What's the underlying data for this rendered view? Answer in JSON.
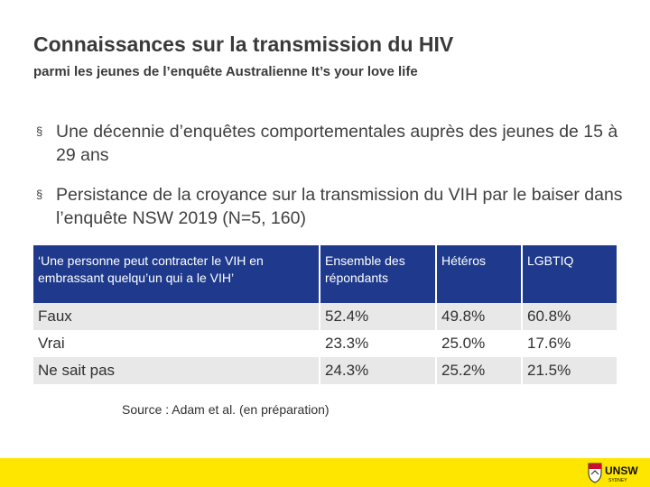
{
  "header": {
    "title": "Connaissances sur la transmission du HIV",
    "subtitle": "parmi les jeunes de l’enquête Australienne It’s your love life"
  },
  "bullets": [
    {
      "marker": "§",
      "text": "Une décennie d’enquêtes comportementales auprès des jeunes de 15 à 29 ans"
    },
    {
      "marker": "§",
      "text": "Persistance de la croyance sur la transmission du VIH par le baiser dans l’enquête NSW 2019 (N=5, 160)"
    }
  ],
  "table": {
    "headers": [
      "‘Une personne peut contracter le VIH en embrassant quelqu’un qui a le VIH’",
      "Ensemble des répondants",
      "Hétéros",
      "LGBTIQ"
    ],
    "rows": [
      [
        "Faux",
        "52.4%",
        "49.8%",
        "60.8%"
      ],
      [
        "Vrai",
        "23.3%",
        "25.0%",
        "17.6%"
      ],
      [
        "Ne sait pas",
        "24.3%",
        "25.2%",
        "21.5%"
      ]
    ]
  },
  "source": "Source : Adam et al. (en préparation)",
  "footer": {
    "logo_text": "UNSW",
    "logo_subtext": "SYDNEY",
    "bar_color": "#ffe600",
    "table_header_color": "#1f3a8c"
  }
}
